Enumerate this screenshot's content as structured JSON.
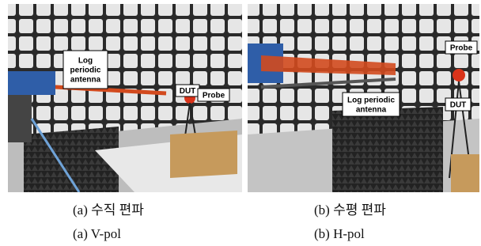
{
  "panels": [
    {
      "callouts": [
        {
          "lines": [
            "Log",
            "periodic",
            "antenna"
          ]
        },
        {
          "lines": [
            "DUT"
          ]
        },
        {
          "lines": [
            "Probe"
          ]
        }
      ],
      "caption_ko": "(a) 수직 편파",
      "caption_en": "(a) V-pol"
    },
    {
      "callouts": [
        {
          "lines": [
            "Probe"
          ]
        },
        {
          "lines": [
            "Log periodic",
            "antenna"
          ]
        },
        {
          "lines": [
            "DUT"
          ]
        }
      ],
      "caption_ko": "(b) 수평 편파",
      "caption_en": "(b) H-pol"
    }
  ]
}
